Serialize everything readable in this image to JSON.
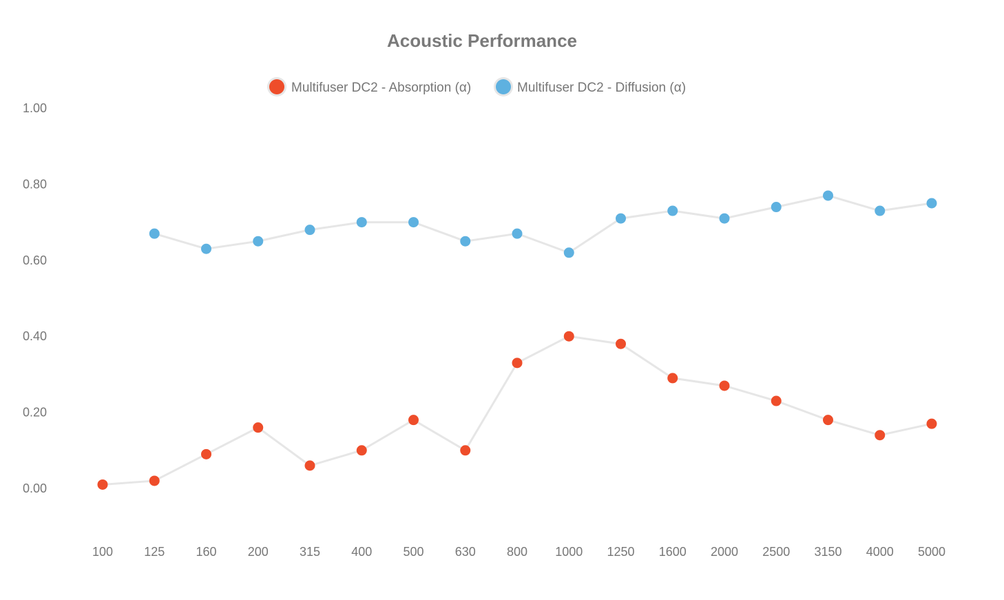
{
  "chart_data": {
    "type": "line",
    "title": "Acoustic Performance",
    "xlabel": "",
    "ylabel": "",
    "categories": [
      "100",
      "125",
      "160",
      "200",
      "315",
      "400",
      "500",
      "630",
      "800",
      "1000",
      "1250",
      "1600",
      "2000",
      "2500",
      "3150",
      "4000",
      "5000"
    ],
    "ylim": [
      0,
      1
    ],
    "yticks": [
      "0.00",
      "0.20",
      "0.40",
      "0.60",
      "0.80",
      "1.00"
    ],
    "ytick_values": [
      0,
      0.2,
      0.4,
      0.6,
      0.8,
      1.0
    ],
    "grid": false,
    "legend_position": "top-center",
    "series": [
      {
        "name": "Multifuser DC2 - Absorption (α)",
        "color": "#ee4d2a",
        "values": [
          0.01,
          0.02,
          0.09,
          0.16,
          0.06,
          0.1,
          0.18,
          0.1,
          0.33,
          0.4,
          0.38,
          0.29,
          0.27,
          0.23,
          0.18,
          0.14,
          0.17
        ]
      },
      {
        "name": "Multifuser DC2 - Diffusion (α)",
        "color": "#5eb1e0",
        "values": [
          null,
          0.67,
          0.63,
          0.65,
          0.68,
          0.7,
          0.7,
          0.65,
          0.67,
          0.62,
          0.71,
          0.73,
          0.71,
          0.74,
          0.77,
          0.73,
          0.75
        ]
      }
    ],
    "line_color": "#e6e6e6"
  }
}
